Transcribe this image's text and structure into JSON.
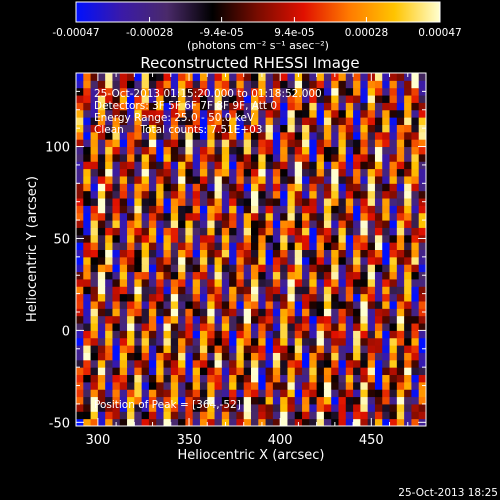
{
  "chart_data": {
    "type": "heatmap",
    "title": "Reconstructed RHESSI Image",
    "xlabel": "Heliocentric X (arcsec)",
    "ylabel": "Heliocentric Y (arcsec)",
    "xlim": [
      288,
      480
    ],
    "ylim": [
      -52,
      140
    ],
    "xticks": [
      "300",
      "350",
      "400",
      "450"
    ],
    "xtick_values": [
      300,
      350,
      400,
      450
    ],
    "yticks": [
      "-50",
      "0",
      "50",
      "100"
    ],
    "ytick_values": [
      -50,
      0,
      50,
      100
    ],
    "colorbar": {
      "ticks": [
        "-0.00047",
        "-0.00028",
        "-9.4e-05",
        "9.4e-05",
        "0.00028",
        "0.00047"
      ],
      "tick_values": [
        -0.00047,
        -0.00028,
        -9.4e-05,
        9.4e-05,
        0.00028,
        0.00047
      ],
      "range": [
        -0.00047,
        0.00047
      ],
      "unit_label": "(photons cm⁻² s⁻¹ asec⁻²)"
    },
    "colormap": [
      "#0010ff",
      "#3a1aa8",
      "#4a2a6a",
      "#000000",
      "#7a0c00",
      "#e01000",
      "#ff7a00",
      "#ffc400",
      "#ffffd0"
    ],
    "pattern": {
      "description_hidden": false,
      "stripe_tilt_arcsec_per_arcsec": 0.22,
      "stripe_period_arcsec": 10.5,
      "grid_cells": [
        48,
        48
      ]
    },
    "annotations": [
      "25-Oct-2013 01:15:20.000 to 01:18:52.000",
      "Detectors: 3F 5F 6F 7F 8F 9F, Att 0",
      "Energy Range: 25.0 - 50.0 keV",
      "Clean     Total counts: 7.51E+03"
    ],
    "peak_label": "Position of Peak = [364,-52]",
    "timestamp": "25-Oct-2013 18:25"
  }
}
